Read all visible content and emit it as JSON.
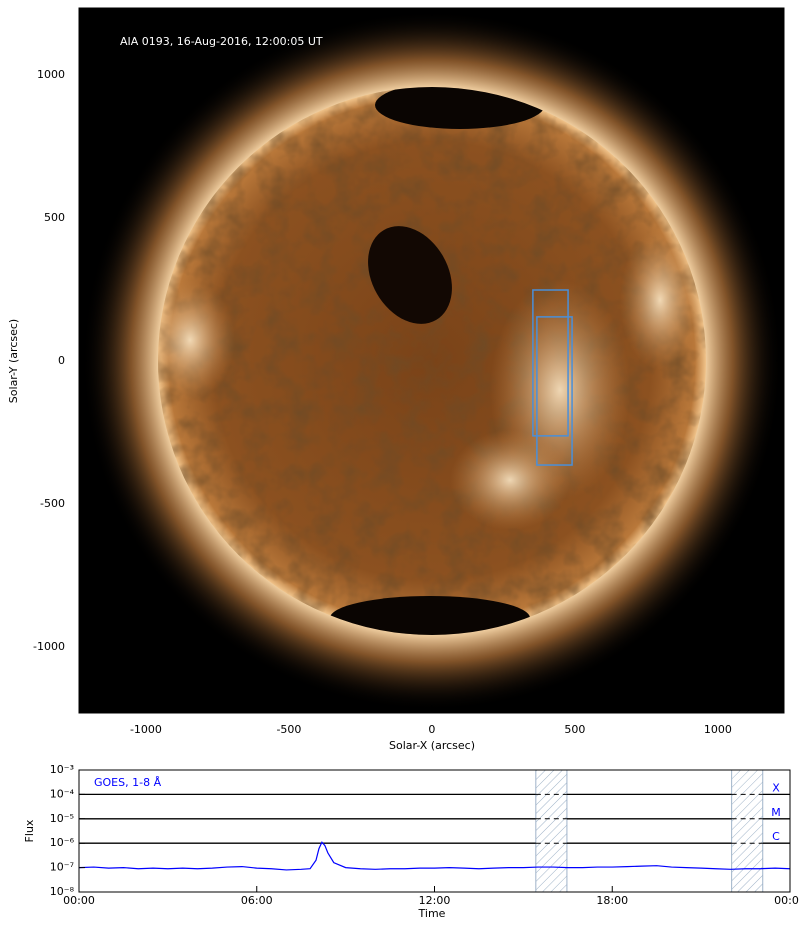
{
  "chart_data": [
    {
      "type": "image",
      "annotation": "AIA 0193, 16-Aug-2016, 12:00:05 UT",
      "xlabel": "Solar-X (arcsec)",
      "ylabel": "Solar-Y (arcsec)",
      "xlim": [
        -1234,
        1231
      ],
      "ylim": [
        -1231,
        1234
      ],
      "xticks": [
        -1000,
        -500,
        0,
        500,
        1000
      ],
      "yticks": [
        -1000,
        -500,
        0,
        500,
        1000
      ],
      "box_color": "#4a8fd8",
      "boxes": [
        {
          "xlim": [
            353,
            476
          ],
          "ylim": [
            -262,
            248
          ]
        },
        {
          "xlim": [
            367,
            490
          ],
          "ylim": [
            -364,
            154
          ]
        }
      ]
    },
    {
      "type": "line",
      "log_y": true,
      "xlabel": "Time",
      "ylabel": "Flux",
      "xlim": [
        0,
        24
      ],
      "ylim": [
        1e-08,
        0.001
      ],
      "xticks": [
        {
          "value": 0,
          "label": "00:00"
        },
        {
          "value": 6,
          "label": "06:00"
        },
        {
          "value": 12,
          "label": "12:00"
        },
        {
          "value": 18,
          "label": "18:00"
        },
        {
          "value": 24,
          "label": "00:00"
        }
      ],
      "yticks": [
        {
          "value": 1e-08,
          "label": "10⁻⁸"
        },
        {
          "value": 1e-07,
          "label": "10⁻⁷"
        },
        {
          "value": 1e-06,
          "label": "10⁻⁶"
        },
        {
          "value": 1e-05,
          "label": "10⁻⁵"
        },
        {
          "value": 0.0001,
          "label": "10⁻⁴"
        },
        {
          "value": 0.001,
          "label": "10⁻³"
        }
      ],
      "flare_classes": [
        {
          "label": "X",
          "value": 0.0001
        },
        {
          "label": "M",
          "value": 1e-05
        },
        {
          "label": "C",
          "value": 1e-06
        }
      ],
      "shaded": [
        [
          15.42,
          16.47
        ],
        [
          22.03,
          23.08
        ]
      ],
      "x": [
        0,
        0.5,
        1,
        1.5,
        2,
        2.5,
        3,
        3.5,
        4,
        4.5,
        5,
        5.5,
        6,
        6.5,
        7,
        7.5,
        7.8,
        8.0,
        8.1,
        8.2,
        8.3,
        8.4,
        8.6,
        9,
        9.5,
        10,
        10.5,
        11,
        11.5,
        12,
        12.5,
        13,
        13.5,
        14,
        14.5,
        15,
        15.5,
        16,
        16.5,
        17,
        17.5,
        18,
        18.5,
        19,
        19.5,
        20,
        20.5,
        21,
        21.5,
        22,
        22.5,
        23,
        23.5,
        24
      ],
      "series": [
        {
          "name": "GOES, 1-8 Å",
          "color": "#0000ff",
          "values": [
            1e-07,
            1.05e-07,
            9.5e-08,
            1e-07,
            9e-08,
            9.5e-08,
            9e-08,
            9.5e-08,
            9e-08,
            9.5e-08,
            1.05e-07,
            1.1e-07,
            9.5e-08,
            9e-08,
            8e-08,
            8.5e-08,
            9e-08,
            2e-07,
            6e-07,
            1.1e-06,
            8e-07,
            4e-07,
            1.6e-07,
            1e-07,
            9e-08,
            8.5e-08,
            9e-08,
            9e-08,
            9.5e-08,
            9.5e-08,
            1e-07,
            9.5e-08,
            9e-08,
            9.5e-08,
            1e-07,
            1e-07,
            1.05e-07,
            1.05e-07,
            1e-07,
            1e-07,
            1.05e-07,
            1.05e-07,
            1.1e-07,
            1.15e-07,
            1.2e-07,
            1.05e-07,
            1e-07,
            9.5e-08,
            9e-08,
            8.5e-08,
            9e-08,
            9e-08,
            9.5e-08,
            9e-08
          ]
        }
      ]
    }
  ]
}
